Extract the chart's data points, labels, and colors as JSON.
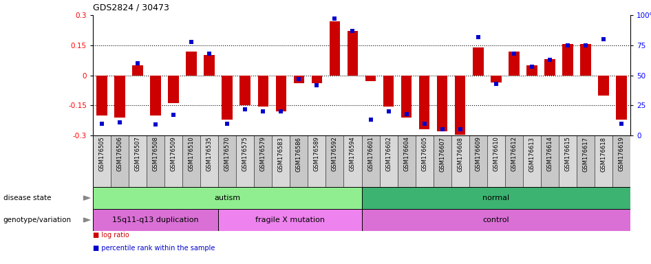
{
  "title": "GDS2824 / 30473",
  "samples": [
    "GSM176505",
    "GSM176506",
    "GSM176507",
    "GSM176508",
    "GSM176509",
    "GSM176510",
    "GSM176535",
    "GSM176570",
    "GSM176575",
    "GSM176579",
    "GSM176583",
    "GSM176586",
    "GSM176589",
    "GSM176592",
    "GSM176594",
    "GSM176601",
    "GSM176602",
    "GSM176604",
    "GSM176605",
    "GSM176607",
    "GSM176608",
    "GSM176609",
    "GSM176610",
    "GSM176612",
    "GSM176613",
    "GSM176614",
    "GSM176615",
    "GSM176617",
    "GSM176618",
    "GSM176619"
  ],
  "log_ratio": [
    -0.2,
    -0.21,
    0.05,
    -0.2,
    -0.14,
    0.12,
    0.1,
    -0.22,
    -0.15,
    -0.155,
    -0.18,
    -0.04,
    -0.04,
    0.27,
    0.22,
    -0.03,
    -0.155,
    -0.21,
    -0.27,
    -0.28,
    -0.295,
    0.14,
    -0.035,
    0.12,
    0.05,
    0.08,
    0.155,
    0.155,
    -0.1,
    -0.22
  ],
  "percentile": [
    10,
    11,
    60,
    9,
    17,
    78,
    68,
    10,
    22,
    20,
    20,
    47,
    42,
    97,
    87,
    13,
    20,
    18,
    10,
    5,
    5,
    82,
    43,
    68,
    57,
    63,
    75,
    75,
    80,
    10
  ],
  "disease_state_groups": [
    {
      "label": "autism",
      "start": 0,
      "end": 15,
      "color": "#90ee90"
    },
    {
      "label": "normal",
      "start": 15,
      "end": 30,
      "color": "#3cb371"
    }
  ],
  "genotype_groups": [
    {
      "label": "15q11-q13 duplication",
      "start": 0,
      "end": 7,
      "color": "#da70d6"
    },
    {
      "label": "fragile X mutation",
      "start": 7,
      "end": 15,
      "color": "#ee82ee"
    },
    {
      "label": "control",
      "start": 15,
      "end": 30,
      "color": "#da70d6"
    }
  ],
  "bar_color": "#cc0000",
  "dot_color": "#0000cc",
  "ylim": [
    -0.3,
    0.3
  ],
  "y2lim": [
    0,
    100
  ],
  "yticks": [
    -0.3,
    -0.15,
    0,
    0.15,
    0.3
  ],
  "yticklabels": [
    "-0.3",
    "-0.15",
    "0",
    "0.15",
    "0.3"
  ],
  "y2ticks": [
    0,
    25,
    50,
    75,
    100
  ],
  "y2ticklabels": [
    "0",
    "25",
    "50",
    "75",
    "100%"
  ],
  "hlines": [
    -0.15,
    0.0,
    0.15
  ]
}
